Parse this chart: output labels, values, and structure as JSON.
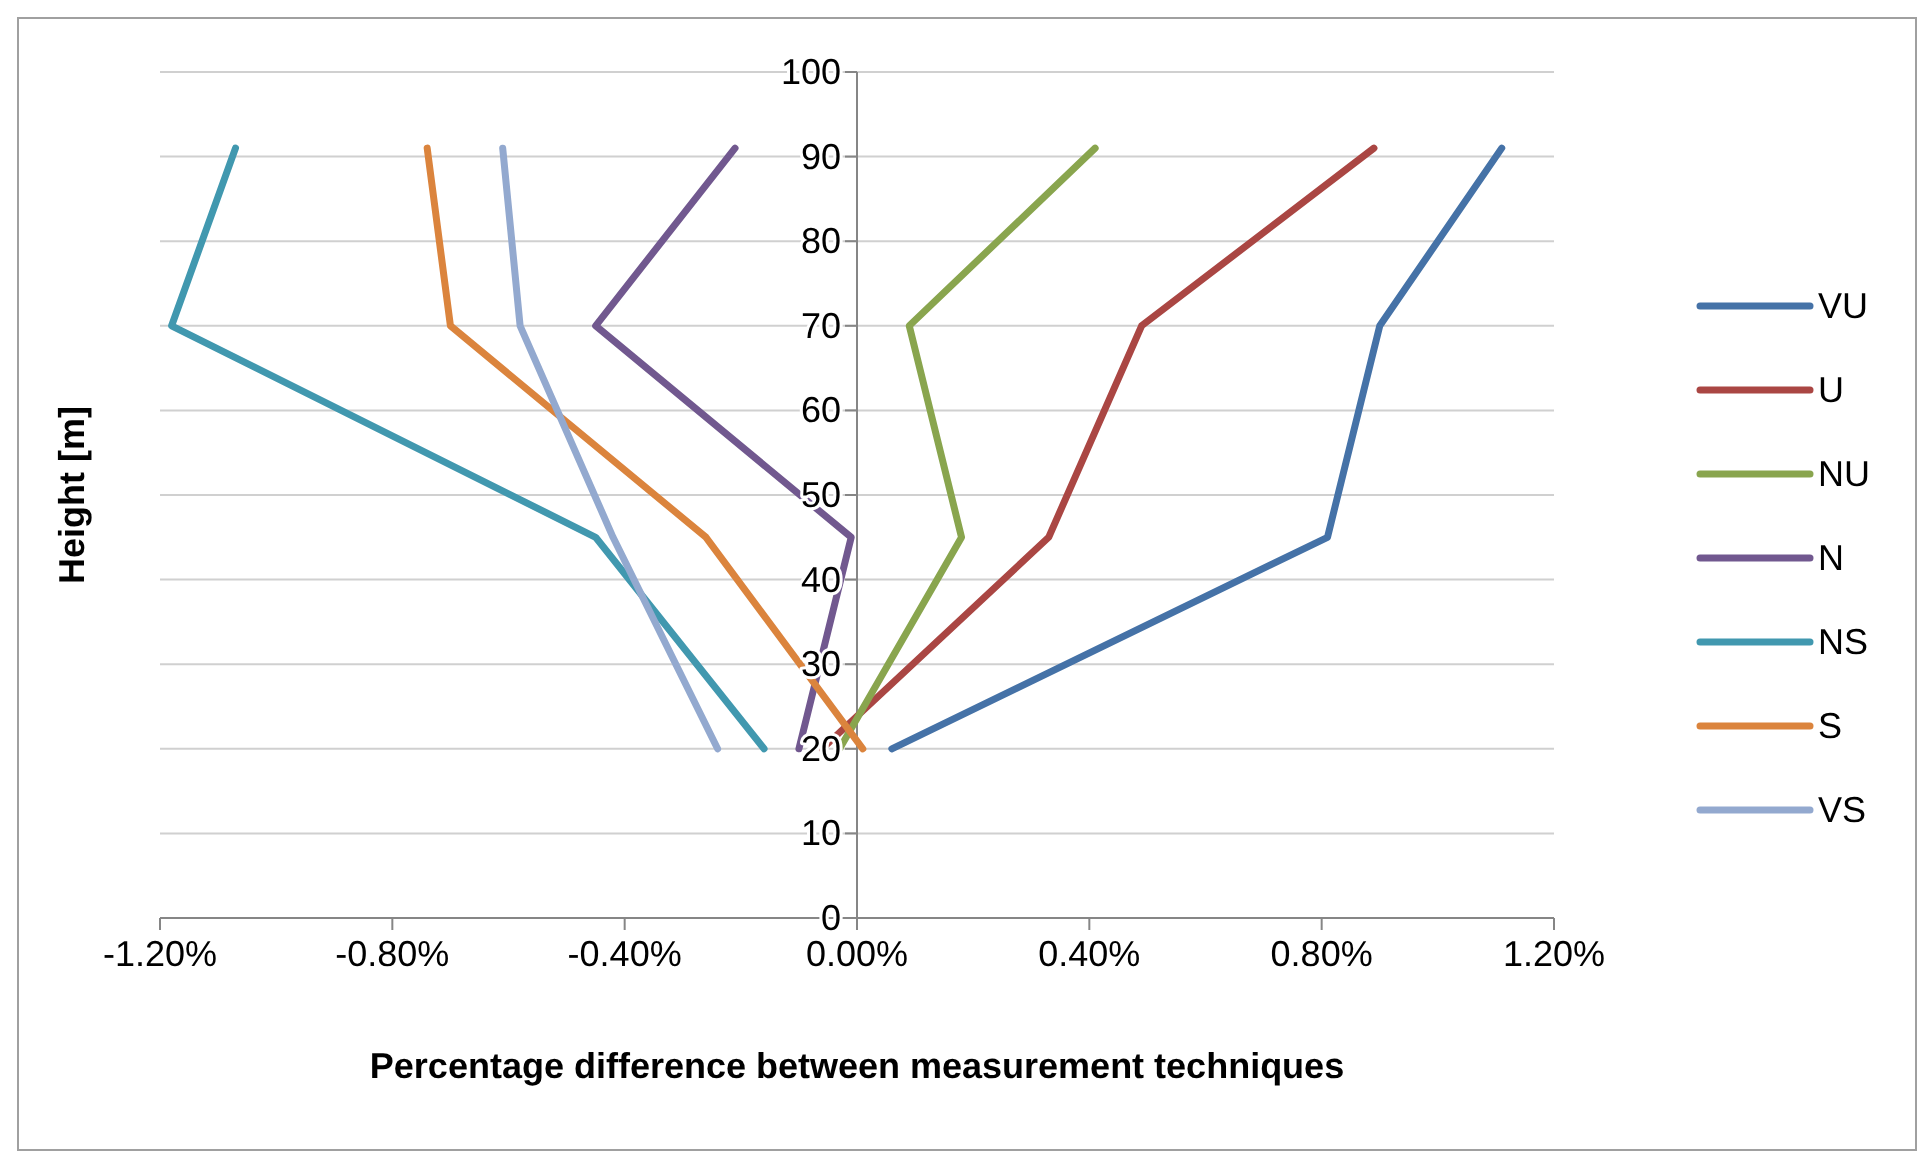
{
  "chart_data": {
    "type": "line",
    "xlabel": "Percentage difference between measurement techniques",
    "ylabel": "Height [m]",
    "xlim": [
      -1.2,
      1.2
    ],
    "ylim": [
      0,
      100
    ],
    "xticks": [
      {
        "value": -1.2,
        "label": "-1.20%"
      },
      {
        "value": -0.8,
        "label": "-0.80%"
      },
      {
        "value": -0.4,
        "label": "-0.40%"
      },
      {
        "value": 0,
        "label": "0.00%"
      },
      {
        "value": 0.4,
        "label": "0.40%"
      },
      {
        "value": 0.8,
        "label": "0.80%"
      },
      {
        "value": 1.2,
        "label": "1.20%"
      }
    ],
    "yticks": [
      0,
      10,
      20,
      30,
      40,
      50,
      60,
      70,
      80,
      90,
      100
    ],
    "grid": "y",
    "legend": "right",
    "marker": "none",
    "line_style": "solid",
    "series": [
      {
        "name": "VU",
        "color": "#4572a7",
        "x": [
          0.06,
          0.81,
          0.9,
          1.11
        ],
        "values": [
          20,
          45,
          70,
          91
        ]
      },
      {
        "name": "U",
        "color": "#aa4643",
        "x": [
          -0.06,
          0.33,
          0.49,
          0.89
        ],
        "values": [
          20,
          45,
          70,
          91
        ]
      },
      {
        "name": "NU",
        "color": "#89a54e",
        "x": [
          -0.03,
          0.18,
          0.09,
          0.41
        ],
        "values": [
          20,
          45,
          70,
          91
        ]
      },
      {
        "name": "N",
        "color": "#71588f",
        "x": [
          -0.1,
          -0.01,
          -0.45,
          -0.21
        ],
        "values": [
          20,
          45,
          70,
          91
        ]
      },
      {
        "name": "NS",
        "color": "#4198af",
        "x": [
          -0.16,
          -0.45,
          -1.18,
          -1.07
        ],
        "values": [
          20,
          45,
          70,
          91
        ]
      },
      {
        "name": "S",
        "color": "#db843d",
        "x": [
          0.01,
          -0.26,
          -0.7,
          -0.74
        ],
        "values": [
          20,
          45,
          70,
          91
        ]
      },
      {
        "name": "VS",
        "color": "#93a9cf",
        "x": [
          -0.24,
          -0.42,
          -0.58,
          -0.61
        ],
        "values": [
          20,
          45,
          70,
          91
        ]
      }
    ]
  }
}
